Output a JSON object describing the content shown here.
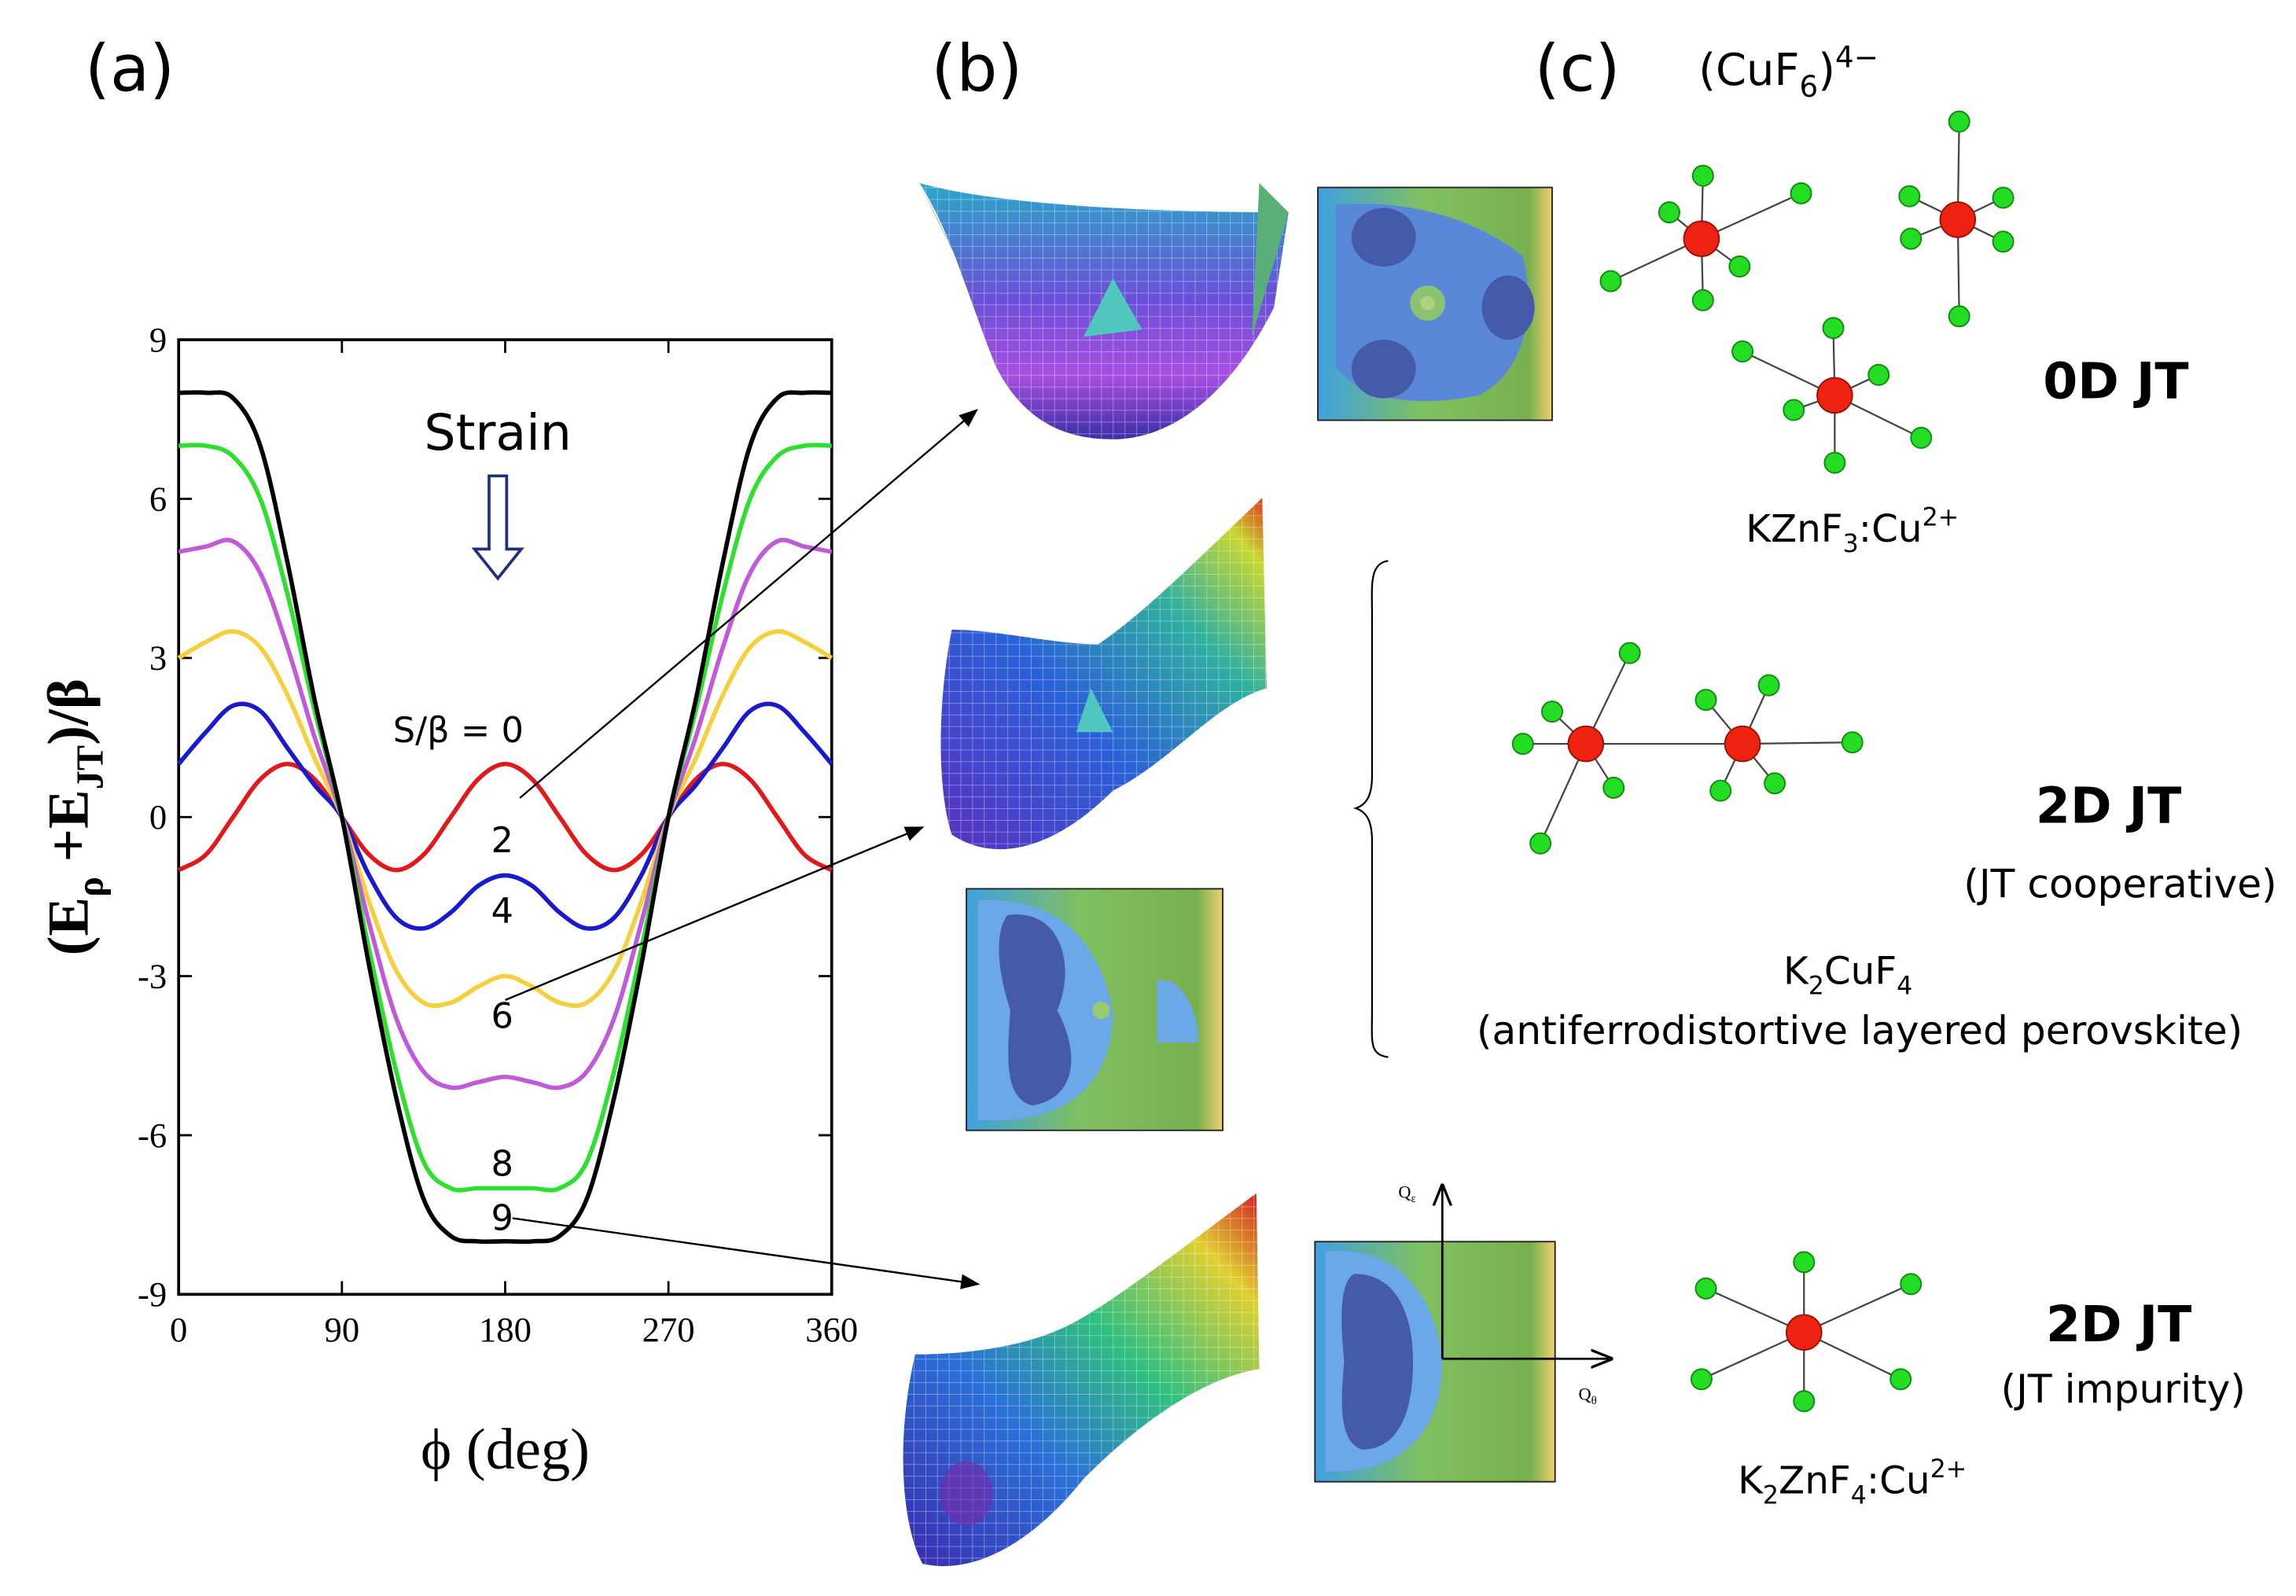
{
  "panel_labels": [
    "(a)",
    "(b)",
    "(c)"
  ],
  "chart_data": {
    "type": "line",
    "strain_label": "Strain",
    "xlabel": "ϕ (deg)",
    "ylabel_parts": [
      "(E",
      "ρ",
      " +E",
      "JT",
      ")/β"
    ],
    "x": [
      0,
      15,
      30,
      45,
      60,
      75,
      90,
      105,
      120,
      135,
      150,
      165,
      180,
      195,
      210,
      225,
      240,
      255,
      270,
      285,
      300,
      315,
      330,
      345,
      360
    ],
    "xlim": [
      0,
      360
    ],
    "ylim": [
      -9,
      9
    ],
    "xticks": [
      0,
      90,
      180,
      270,
      360
    ],
    "yticks": [
      -9,
      -6,
      -3,
      0,
      3,
      6,
      9
    ],
    "series": [
      {
        "name": "S/β = 0",
        "color": "#e0191b",
        "values": [
          -1,
          -0.71,
          0,
          0.71,
          1,
          0.71,
          0,
          -0.71,
          -1,
          -0.71,
          0,
          0.71,
          1,
          0.71,
          0,
          -0.71,
          -1,
          -0.71,
          0,
          0.71,
          1,
          0.71,
          0,
          -0.71,
          -1
        ]
      },
      {
        "name": "2",
        "color": "#1a1acc",
        "values": [
          1,
          1.6,
          2.1,
          2,
          1.3,
          0.6,
          0,
          -1.1,
          -1.9,
          -2.1,
          -1.8,
          -1.3,
          -1.1,
          -1.3,
          -1.8,
          -2.1,
          -1.9,
          -1.1,
          0,
          0.6,
          1.3,
          2,
          2.1,
          1.6,
          1
        ]
      },
      {
        "name": "4",
        "color": "#f5cf3c",
        "values": [
          3,
          3.3,
          3.5,
          3.2,
          2.3,
          1.1,
          0,
          -1.6,
          -2.9,
          -3.5,
          -3.5,
          -3.2,
          -3,
          -3.2,
          -3.5,
          -3.5,
          -2.9,
          -1.6,
          0,
          1.1,
          2.3,
          3.2,
          3.5,
          3.3,
          3
        ]
      },
      {
        "name": "6",
        "color": "#c05ad8",
        "values": [
          5,
          5.1,
          5.2,
          4.6,
          3.2,
          1.5,
          0,
          -2,
          -3.8,
          -4.8,
          -5.1,
          -5,
          -4.9,
          -5,
          -5.1,
          -4.8,
          -3.8,
          -2,
          0,
          1.5,
          3.2,
          4.6,
          5.2,
          5.1,
          5
        ]
      },
      {
        "name": "8",
        "color": "#2ee02e",
        "values": [
          7,
          7,
          6.8,
          6,
          4.2,
          2,
          0,
          -2.5,
          -4.8,
          -6.5,
          -7,
          -7,
          -7,
          -7,
          -7,
          -6.5,
          -4.8,
          -2.5,
          0,
          2,
          4.2,
          6,
          6.8,
          7,
          7
        ]
      },
      {
        "name": "9",
        "color": "#000000",
        "values": [
          8,
          8,
          7.9,
          7,
          4.8,
          2.2,
          0,
          -2.8,
          -5.3,
          -7.2,
          -7.9,
          -8,
          -8,
          -8,
          -7.9,
          -7.2,
          -5.3,
          -2.8,
          0,
          2.2,
          4.8,
          7,
          7.9,
          8,
          8
        ]
      }
    ]
  },
  "panel_c": {
    "formula_top": [
      "(CuF",
      "6",
      ")",
      "4−"
    ],
    "row1_title": "0D JT",
    "row1_compound": [
      "KZnF",
      "3",
      ":Cu",
      "2+"
    ],
    "row2_title": "2D JT",
    "row2_subtitle": "(JT cooperative)",
    "row2_compound": [
      "K",
      "2",
      "CuF",
      "4"
    ],
    "row2_description": "(antiferrodistortive layered perovskite)",
    "row3_title": "2D JT",
    "row3_subtitle": "(JT impurity)",
    "row3_compound": [
      "K",
      "2",
      "ZnF",
      "4",
      ":Cu",
      "2+"
    ]
  },
  "panel_b": {
    "axis_q_epsilon": [
      "Q",
      "ε"
    ],
    "axis_q_theta": [
      "Q",
      "θ"
    ]
  }
}
